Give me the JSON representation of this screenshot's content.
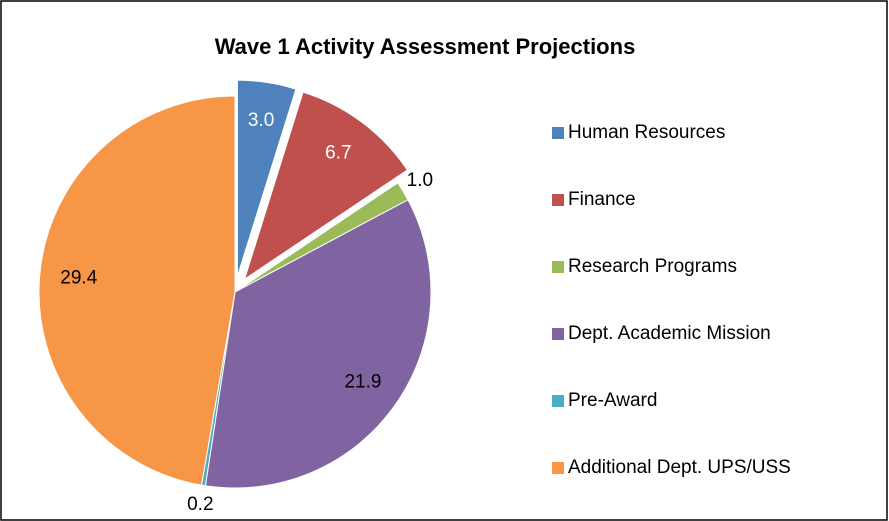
{
  "chart_data": {
    "type": "pie",
    "title": "Wave 1 Activity Assessment Projections",
    "categories": [
      "Human Resources",
      "Finance",
      "Research Programs",
      "Dept. Academic Mission",
      "Pre-Award",
      "Additional Dept. UPS/USS"
    ],
    "values": [
      3.0,
      6.7,
      1.0,
      21.9,
      0.2,
      29.4
    ],
    "value_labels": [
      "3.0",
      "6.7",
      "1.0",
      "21.9",
      "0.2",
      "29.4"
    ],
    "colors": [
      "#4f81bd",
      "#c0504d",
      "#9bbb59",
      "#8064a2",
      "#4bacc6",
      "#f79646"
    ],
    "explode": [
      true,
      true,
      false,
      false,
      false,
      false
    ],
    "legend": "right"
  }
}
